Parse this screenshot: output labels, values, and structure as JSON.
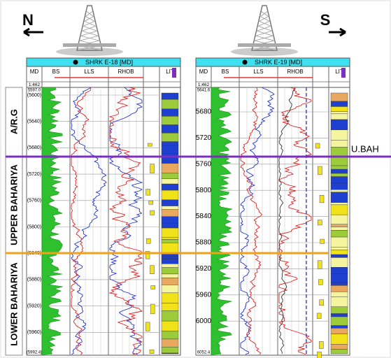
{
  "compass": {
    "north": "N",
    "south": "S"
  },
  "zones": [
    "A/R.G",
    "UPPER BAHARIYA",
    "LOWER BAHARIYA"
  ],
  "marker": "U.BAH",
  "wells": [
    {
      "name": "SHRK E-18 [MD]",
      "columns": [
        "MD",
        "BS",
        "LLS",
        "RHOB",
        "LIT"
      ],
      "scale": "1:462",
      "top_depth": "5597.0",
      "bottom_depth": "(5992.4)",
      "depths": [
        "(5600)",
        "(5640)",
        "(5680)",
        "(5720)",
        "(5760)",
        "(5800)",
        "(5840)",
        "(5880)",
        "(5920)",
        "(5960)"
      ]
    },
    {
      "name": "SHRK E-19 [MD]",
      "columns": [
        "MD",
        "BS",
        "LLS",
        "RHOB",
        "LIT"
      ],
      "scale": "1:462",
      "top_depth": "5641.6",
      "bottom_depth": "6052.4",
      "depths": [
        "5680",
        "5720",
        "5760",
        "5800",
        "5840",
        "5880",
        "5920",
        "5960",
        "6000"
      ]
    }
  ]
}
